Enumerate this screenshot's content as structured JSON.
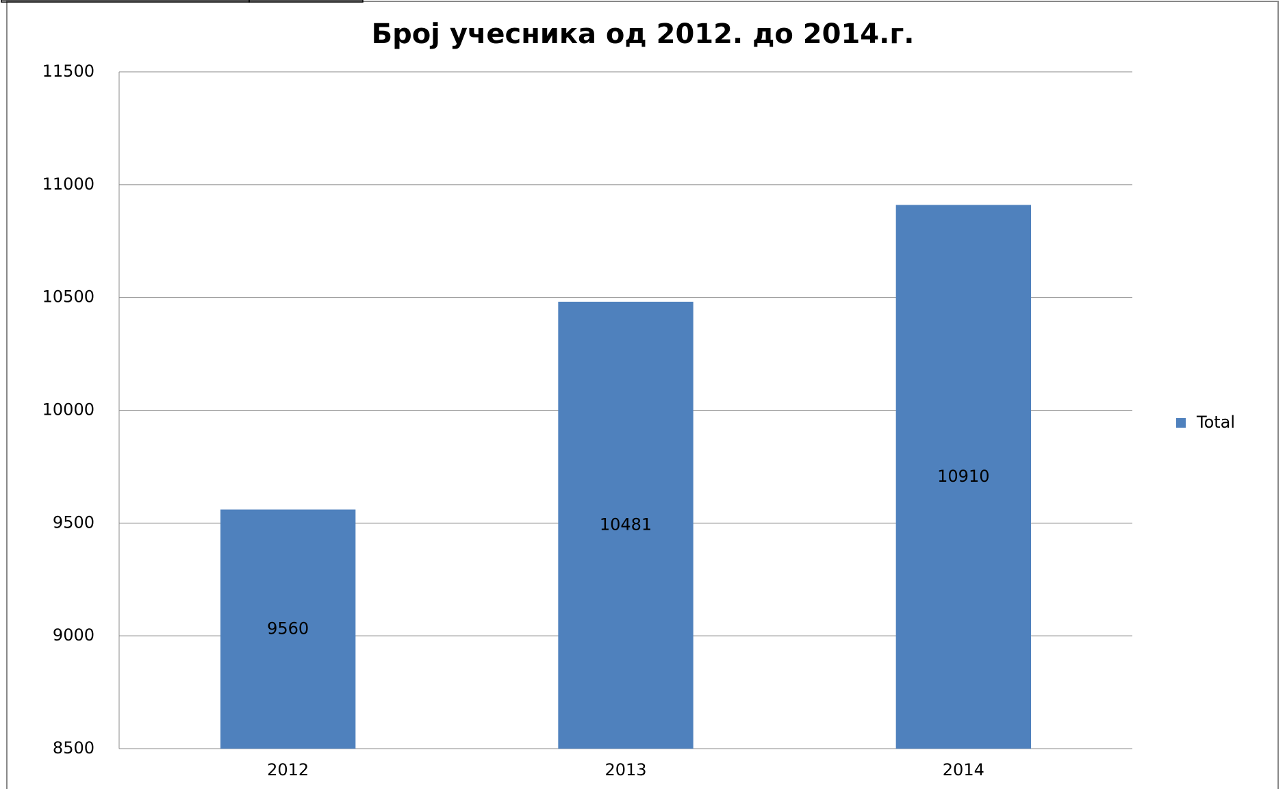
{
  "chart_data": {
    "type": "bar",
    "title": "Број учесника од 2012. до 2014.г.",
    "categories": [
      "2012",
      "2013",
      "2014"
    ],
    "series": [
      {
        "name": "Total",
        "color": "#4f81bd",
        "values": [
          9560,
          10481,
          10910
        ]
      }
    ],
    "ylim": [
      8500,
      11500
    ],
    "yticks": [
      8500,
      9000,
      9500,
      10000,
      10500,
      11000,
      11500
    ],
    "grid": true,
    "legend": "right"
  }
}
